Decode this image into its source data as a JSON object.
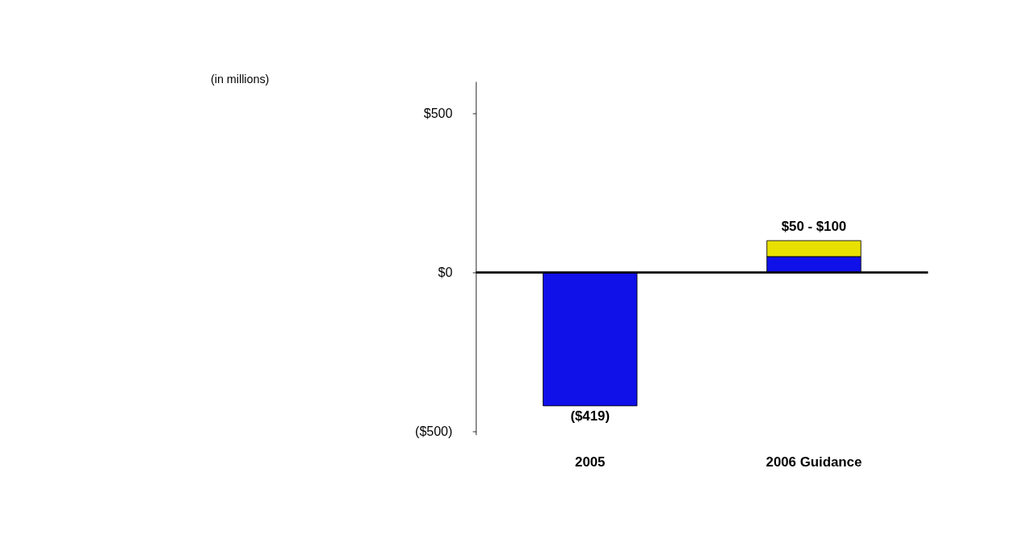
{
  "chart_data": {
    "type": "bar",
    "stacked": true,
    "categories": [
      "2005",
      "2006 Guidance"
    ],
    "series": [
      {
        "color": "#1010e8",
        "values": [
          -419,
          50
        ],
        "value_labels": [
          "($419)",
          null
        ]
      },
      {
        "color": "#e8e000",
        "values": [
          null,
          50
        ],
        "value_labels": [
          null,
          "$50 - $100"
        ]
      }
    ],
    "ylim": [
      -510,
      600
    ],
    "yticks": [
      {
        "value": 500,
        "label": "$500"
      },
      {
        "value": 0,
        "label": "$0"
      },
      {
        "value": -500,
        "label": "($500)"
      }
    ],
    "annotations": [
      "(in millions)"
    ],
    "ref_lines": [
      {
        "axis": "y",
        "value": 0,
        "color": "#000000"
      }
    ],
    "grid": false
  }
}
